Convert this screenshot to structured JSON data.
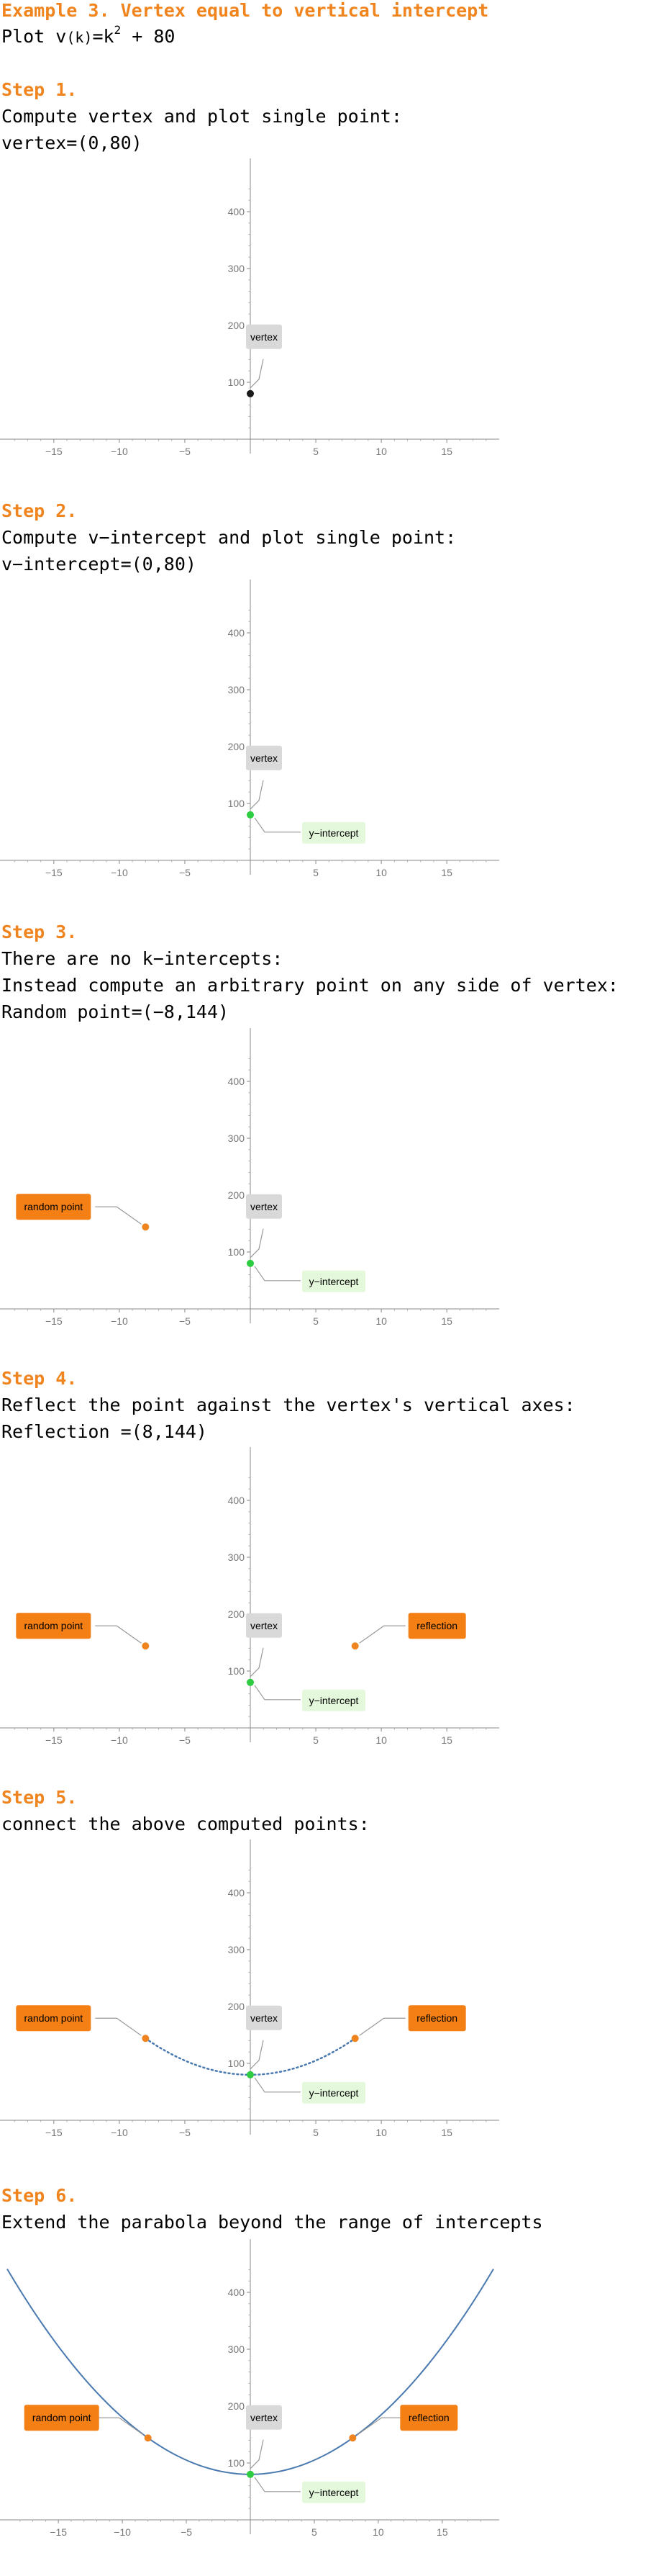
{
  "heading": "Example 3. Vertex equal to vertical intercept",
  "function_line": {
    "prefix": "Plot v",
    "arg": "(k)",
    "eq": "=k",
    "exp": "2",
    "rest": " + 80"
  },
  "steps": [
    {
      "title": "Step 1.",
      "lines": [
        "Compute vertex and plot single point:",
        "vertex=(0,80)"
      ]
    },
    {
      "title": "Step 2.",
      "lines": [
        "Compute v−intercept and plot single point:",
        "v−intercept=(0,80)"
      ]
    },
    {
      "title": "Step 3.",
      "lines": [
        "There are no k−intercepts:",
        "Instead compute an arbitrary point on any side of vertex:",
        "Random point=(−8,144)"
      ]
    },
    {
      "title": "Step 4.",
      "lines": [
        "Reflect the point against the vertex's vertical axes:",
        "Reflection =(8,144)"
      ]
    },
    {
      "title": "Step 5.",
      "lines": [
        "connect the above computed points:"
      ]
    },
    {
      "title": "Step 6.",
      "lines": [
        "Extend the parabola beyond the range of intercepts"
      ]
    }
  ],
  "labels": {
    "vertex": "vertex",
    "y_intercept": "y−intercept",
    "random_point": "random point",
    "reflection": "reflection"
  },
  "colors": {
    "accent": "#f0841e",
    "vertex_point": "#1a1a1a",
    "intercept_point": "#2ecc40",
    "curve": "#4a7ab0",
    "label_gray": "#d9d9d9",
    "label_green": "#e4f8dc",
    "label_orange": "#f47f14"
  },
  "chart_data": [
    {
      "type": "scatter",
      "xlim": [
        -19,
        19
      ],
      "ylim": [
        -20,
        460
      ],
      "xticks": [
        "−15",
        "−10",
        "−5",
        "5",
        "10",
        "15"
      ],
      "yticks": [
        "100",
        "200",
        "300",
        "400"
      ],
      "points": [
        {
          "x": 0,
          "y": 80,
          "label": "vertex"
        }
      ]
    },
    {
      "type": "scatter",
      "xlim": [
        -19,
        19
      ],
      "ylim": [
        -20,
        460
      ],
      "xticks": [
        "−15",
        "−10",
        "−5",
        "5",
        "10",
        "15"
      ],
      "yticks": [
        "100",
        "200",
        "300",
        "400"
      ],
      "points": [
        {
          "x": 0,
          "y": 80,
          "label": "vertex"
        },
        {
          "x": 0,
          "y": 80,
          "label": "y−intercept"
        }
      ]
    },
    {
      "type": "scatter",
      "xlim": [
        -19,
        19
      ],
      "ylim": [
        -20,
        460
      ],
      "xticks": [
        "−15",
        "−10",
        "−5",
        "5",
        "10",
        "15"
      ],
      "yticks": [
        "100",
        "200",
        "300",
        "400"
      ],
      "points": [
        {
          "x": 0,
          "y": 80,
          "label": "vertex"
        },
        {
          "x": 0,
          "y": 80,
          "label": "y−intercept"
        },
        {
          "x": -8,
          "y": 144,
          "label": "random point"
        }
      ]
    },
    {
      "type": "scatter",
      "xlim": [
        -19,
        19
      ],
      "ylim": [
        -20,
        460
      ],
      "xticks": [
        "−15",
        "−10",
        "−5",
        "5",
        "10",
        "15"
      ],
      "yticks": [
        "100",
        "200",
        "300",
        "400"
      ],
      "points": [
        {
          "x": 0,
          "y": 80,
          "label": "vertex"
        },
        {
          "x": 0,
          "y": 80,
          "label": "y−intercept"
        },
        {
          "x": -8,
          "y": 144,
          "label": "random point"
        },
        {
          "x": 8,
          "y": 144,
          "label": "reflection"
        }
      ]
    },
    {
      "type": "line",
      "xlim": [
        -19,
        19
      ],
      "ylim": [
        -20,
        460
      ],
      "xticks": [
        "−15",
        "−10",
        "−5",
        "5",
        "10",
        "15"
      ],
      "yticks": [
        "100",
        "200",
        "300",
        "400"
      ],
      "curve": "v(k)=k^2+80",
      "curve_range": [
        -8,
        8
      ],
      "curve_style": "dotted",
      "points": [
        {
          "x": 0,
          "y": 80,
          "label": "vertex"
        },
        {
          "x": 0,
          "y": 80,
          "label": "y−intercept"
        },
        {
          "x": -8,
          "y": 144,
          "label": "random point"
        },
        {
          "x": 8,
          "y": 144,
          "label": "reflection"
        }
      ]
    },
    {
      "type": "line",
      "xlim": [
        -19,
        19
      ],
      "ylim": [
        -20,
        460
      ],
      "xticks": [
        "−15",
        "−10",
        "−5",
        "5",
        "10",
        "15"
      ],
      "yticks": [
        "100",
        "200",
        "300",
        "400"
      ],
      "curve": "v(k)=k^2+80",
      "curve_range": [
        -19,
        19
      ],
      "curve_style": "solid",
      "points": [
        {
          "x": 0,
          "y": 80,
          "label": "vertex"
        },
        {
          "x": 0,
          "y": 80,
          "label": "y−intercept"
        },
        {
          "x": -8,
          "y": 144,
          "label": "random point"
        },
        {
          "x": 8,
          "y": 144,
          "label": "reflection"
        }
      ]
    }
  ]
}
